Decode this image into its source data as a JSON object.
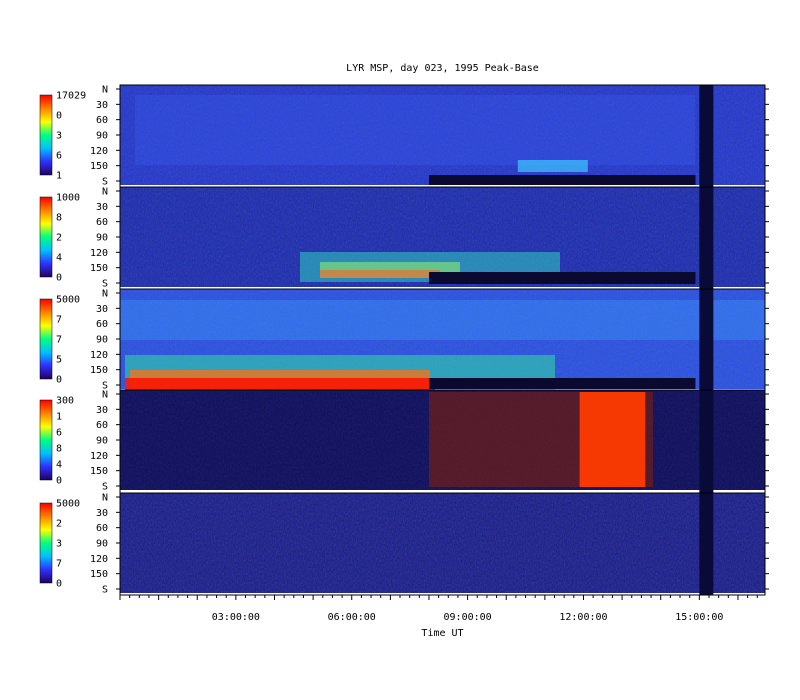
{
  "chart_data": {
    "type": "heatmap",
    "title": "LYR MSP, day 023, 1995 Peak-Base",
    "xlabel": "Time UT",
    "x_ticks": [
      "03:00:00",
      "06:00:00",
      "09:00:00",
      "12:00:00",
      "15:00:00"
    ],
    "y_ticks": [
      "N",
      "30",
      "60",
      "90",
      "120",
      "150",
      "S"
    ],
    "panels": [
      {
        "name": "panel-1",
        "colorbar_labels": [
          "17029",
          "0",
          "3",
          "6",
          "1"
        ]
      },
      {
        "name": "panel-2",
        "colorbar_labels": [
          "1000",
          "8",
          "2",
          "4",
          "0"
        ]
      },
      {
        "name": "panel-3",
        "colorbar_labels": [
          "5000",
          "7",
          "7",
          "5",
          "0"
        ]
      },
      {
        "name": "panel-4",
        "colorbar_labels": [
          "300",
          "1",
          "6",
          "8",
          "4",
          "0"
        ]
      },
      {
        "name": "panel-5",
        "colorbar_labels": [
          "5000",
          "2",
          "3",
          "7",
          "0"
        ]
      }
    ],
    "colormap": [
      "#200060",
      "#3030ff",
      "#00c0ff",
      "#00ff80",
      "#ffff00",
      "#ff8000",
      "#ff0000"
    ]
  }
}
